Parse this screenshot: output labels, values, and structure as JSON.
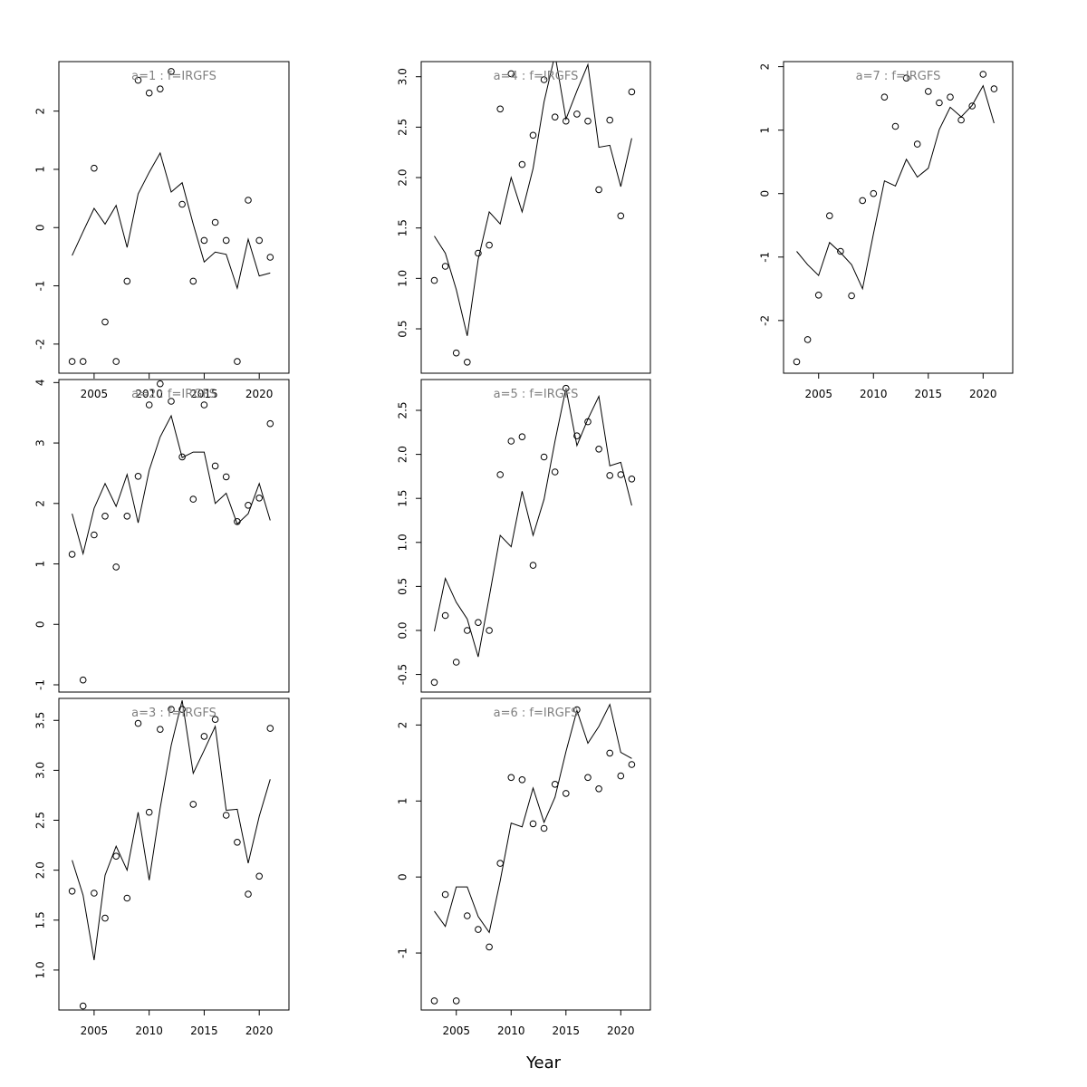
{
  "xlabel": "Year",
  "chart_data": [
    {
      "type": "line+scatter",
      "title": "a=1 : f=IRGFS",
      "x_ticks": [
        2005,
        2010,
        2015,
        2020
      ],
      "y_ticks": [
        -2,
        -1,
        0,
        1,
        2
      ],
      "xlim": [
        2001.8,
        2022.7
      ],
      "ylim": [
        -2.5,
        2.85
      ],
      "years": [
        2003,
        2004,
        2005,
        2006,
        2007,
        2008,
        2009,
        2010,
        2011,
        2012,
        2013,
        2014,
        2015,
        2016,
        2017,
        2018,
        2019,
        2020,
        2021
      ],
      "line": [
        -0.48,
        -0.07,
        0.33,
        0.06,
        0.38,
        -0.34,
        0.58,
        0.95,
        1.28,
        0.61,
        0.77,
        0.06,
        -0.59,
        -0.42,
        -0.46,
        -1.04,
        -0.2,
        -0.83,
        -0.78
      ],
      "points": [
        -2.3,
        -2.3,
        1.02,
        -1.62,
        -2.3,
        -0.92,
        2.53,
        2.31,
        2.38,
        2.68,
        0.4,
        -0.92,
        -0.22,
        0.09,
        -0.22,
        -2.3,
        0.47,
        -0.22,
        -0.51
      ]
    },
    {
      "type": "line+scatter",
      "title": "a=2 : f=IRGFS",
      "x_ticks": [],
      "y_ticks": [
        -1,
        0,
        1,
        2,
        3,
        4
      ],
      "xlim": [
        2001.8,
        2022.7
      ],
      "ylim": [
        -1.12,
        4.05
      ],
      "years": [
        2003,
        2004,
        2005,
        2006,
        2007,
        2008,
        2009,
        2010,
        2011,
        2012,
        2013,
        2014,
        2015,
        2016,
        2017,
        2018,
        2019,
        2020,
        2021
      ],
      "line": [
        1.83,
        1.17,
        1.92,
        2.33,
        1.95,
        2.48,
        1.68,
        2.55,
        3.1,
        3.45,
        2.76,
        2.85,
        2.85,
        2.0,
        2.17,
        1.66,
        1.83,
        2.33,
        1.72
      ],
      "points": [
        1.16,
        -0.92,
        1.48,
        1.79,
        0.95,
        1.79,
        2.45,
        3.63,
        3.98,
        3.69,
        2.77,
        2.07,
        3.63,
        2.62,
        2.44,
        1.7,
        1.97,
        2.09,
        3.32
      ]
    },
    {
      "type": "line+scatter",
      "title": "a=3 : f=IRGFS",
      "x_ticks": [
        2005,
        2010,
        2015,
        2020
      ],
      "y_ticks": [
        1.0,
        1.5,
        2.0,
        2.5,
        3.0,
        3.5
      ],
      "xlim": [
        2001.8,
        2022.7
      ],
      "ylim": [
        0.6,
        3.72
      ],
      "years": [
        2003,
        2004,
        2005,
        2006,
        2007,
        2008,
        2009,
        2010,
        2011,
        2012,
        2013,
        2014,
        2015,
        2016,
        2017,
        2018,
        2019,
        2020,
        2021
      ],
      "line": [
        2.1,
        1.75,
        1.1,
        1.95,
        2.24,
        2.0,
        2.58,
        1.9,
        2.62,
        3.25,
        3.7,
        2.97,
        3.2,
        3.44,
        2.6,
        2.61,
        2.07,
        2.54,
        2.91
      ],
      "points": [
        1.79,
        0.64,
        1.77,
        1.52,
        2.14,
        1.72,
        3.47,
        2.58,
        3.41,
        3.61,
        3.61,
        2.66,
        3.34,
        3.51,
        2.55,
        2.28,
        1.76,
        1.94,
        3.42
      ]
    },
    {
      "type": "line+scatter",
      "title": "a=4 : f=IRGFS",
      "x_ticks": [],
      "y_ticks": [
        0.5,
        1.0,
        1.5,
        2.0,
        2.5,
        3.0
      ],
      "xlim": [
        2001.8,
        2022.7
      ],
      "ylim": [
        0.06,
        3.15
      ],
      "years": [
        2003,
        2004,
        2005,
        2006,
        2007,
        2008,
        2009,
        2010,
        2011,
        2012,
        2013,
        2014,
        2015,
        2016,
        2017,
        2018,
        2019,
        2020,
        2021
      ],
      "line": [
        1.42,
        1.25,
        0.89,
        0.43,
        1.19,
        1.66,
        1.54,
        2.0,
        1.66,
        2.09,
        2.75,
        3.22,
        2.58,
        2.86,
        3.12,
        2.3,
        2.32,
        1.91,
        2.39
      ],
      "points": [
        0.98,
        1.12,
        0.26,
        0.17,
        1.25,
        1.33,
        2.68,
        3.03,
        2.13,
        2.42,
        2.97,
        2.6,
        2.56,
        2.63,
        2.56,
        1.88,
        2.57,
        1.62,
        2.85
      ]
    },
    {
      "type": "line+scatter",
      "title": "a=5 : f=IRGFS",
      "x_ticks": [],
      "y_ticks": [
        -0.5,
        0.0,
        0.5,
        1.0,
        1.5,
        2.0,
        2.5
      ],
      "xlim": [
        2001.8,
        2022.7
      ],
      "ylim": [
        -0.7,
        2.85
      ],
      "years": [
        2003,
        2004,
        2005,
        2006,
        2007,
        2008,
        2009,
        2010,
        2011,
        2012,
        2013,
        2014,
        2015,
        2016,
        2017,
        2018,
        2019,
        2020,
        2021
      ],
      "line": [
        -0.01,
        0.59,
        0.32,
        0.13,
        -0.3,
        0.38,
        1.08,
        0.95,
        1.58,
        1.08,
        1.49,
        2.15,
        2.75,
        2.1,
        2.4,
        2.66,
        1.87,
        1.91,
        1.42
      ],
      "points": [
        -0.59,
        0.17,
        -0.36,
        0.0,
        0.09,
        0.0,
        1.77,
        2.15,
        2.2,
        0.74,
        1.97,
        1.8,
        2.75,
        2.21,
        2.37,
        2.06,
        1.76,
        1.77,
        1.72
      ]
    },
    {
      "type": "line+scatter",
      "title": "a=6 : f=IRGFS",
      "x_ticks": [
        2005,
        2010,
        2015,
        2020
      ],
      "y_ticks": [
        -1,
        0,
        1,
        2
      ],
      "xlim": [
        2001.8,
        2022.7
      ],
      "ylim": [
        -1.75,
        2.35
      ],
      "years": [
        2003,
        2004,
        2005,
        2006,
        2007,
        2008,
        2009,
        2010,
        2011,
        2012,
        2013,
        2014,
        2015,
        2016,
        2017,
        2018,
        2019,
        2020,
        2021
      ],
      "line": [
        -0.45,
        -0.65,
        -0.13,
        -0.13,
        -0.52,
        -0.73,
        -0.05,
        0.71,
        0.66,
        1.17,
        0.72,
        1.05,
        1.65,
        2.19,
        1.76,
        1.98,
        2.27,
        1.64,
        1.56
      ],
      "points": [
        -1.63,
        -0.23,
        -1.63,
        -0.51,
        -0.69,
        -0.92,
        0.18,
        1.31,
        1.28,
        0.7,
        0.64,
        1.22,
        1.1,
        2.2,
        1.31,
        1.16,
        1.63,
        1.33,
        1.48
      ]
    },
    {
      "type": "line+scatter",
      "title": "a=7 : f=IRGFS",
      "x_ticks": [
        2005,
        2010,
        2015,
        2020
      ],
      "y_ticks": [
        -2,
        -1,
        0,
        1,
        2
      ],
      "xlim": [
        2001.8,
        2022.7
      ],
      "ylim": [
        -2.83,
        2.08
      ],
      "years": [
        2003,
        2004,
        2005,
        2006,
        2007,
        2008,
        2009,
        2010,
        2011,
        2012,
        2013,
        2014,
        2015,
        2016,
        2017,
        2018,
        2019,
        2020,
        2021
      ],
      "line": [
        -0.91,
        -1.12,
        -1.29,
        -0.77,
        -0.93,
        -1.12,
        -1.5,
        -0.63,
        0.2,
        0.12,
        0.54,
        0.26,
        0.4,
        1.01,
        1.36,
        1.21,
        1.39,
        1.7,
        1.11
      ],
      "points": [
        -2.65,
        -2.3,
        -1.6,
        -0.35,
        -0.91,
        -1.61,
        -0.11,
        0.0,
        1.52,
        1.06,
        1.82,
        0.78,
        1.61,
        1.43,
        1.52,
        1.16,
        1.38,
        1.88,
        1.65
      ]
    }
  ]
}
